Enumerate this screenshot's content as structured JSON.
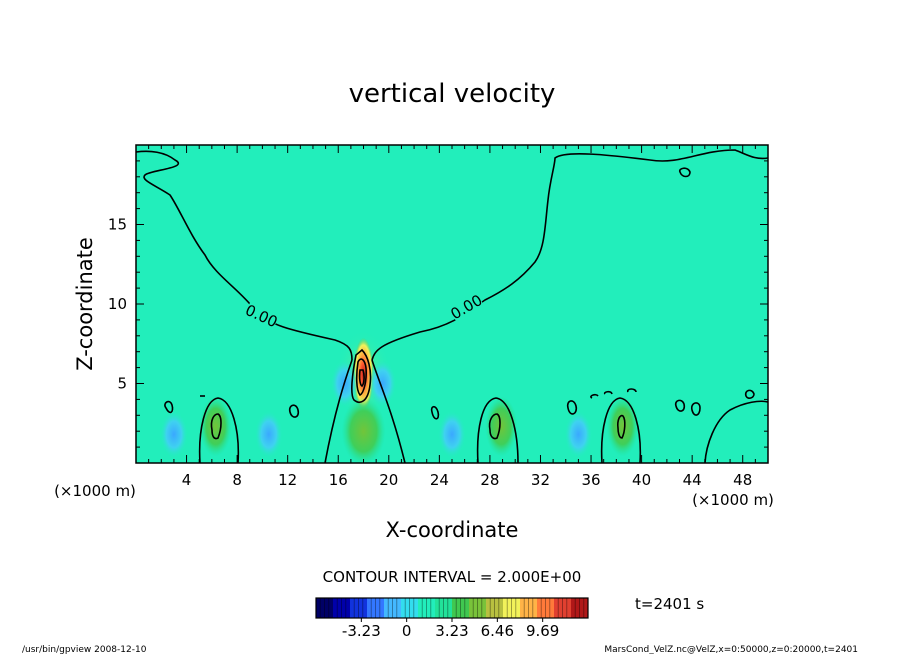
{
  "chart_data": {
    "type": "heatmap",
    "title": "vertical velocity",
    "xlabel": "X-coordinate",
    "ylabel": "Z-coordinate",
    "x_unit": "(×1000 m)",
    "x_unit_right": "(×1000 m)",
    "xlim": [
      0,
      50
    ],
    "ylim": [
      0,
      20
    ],
    "x_ticks": [
      4,
      8,
      12,
      16,
      20,
      24,
      28,
      32,
      36,
      40,
      44,
      48
    ],
    "y_ticks": [
      5,
      10,
      15
    ],
    "contour_interval_label": "CONTOUR INTERVAL = 2.000E+00",
    "contour_labels": [
      "0.00",
      "0.00"
    ],
    "colorbar": {
      "min": -6.46,
      "max": 12.92,
      "tick_values": [
        -3.23,
        0,
        3.23,
        6.46,
        9.69
      ],
      "tick_labels": [
        "-3.23",
        "0",
        "3.23",
        "6.46",
        "9.69"
      ],
      "colors": [
        "#000066",
        "#0000aa",
        "#1133dd",
        "#3377ff",
        "#44b8ff",
        "#33ddee",
        "#22eebb",
        "#22e29a",
        "#40c850",
        "#79c23a",
        "#b8c040",
        "#f2f25a",
        "#ffb347",
        "#ff7a3a",
        "#e04030",
        "#b01818"
      ]
    },
    "features": [
      {
        "kind": "updraft_core",
        "x": 18.0,
        "z_top": 7.5,
        "z_bottom": 3.7,
        "max": 12.0
      },
      {
        "kind": "updraft",
        "x": 6.3,
        "z": 2.3,
        "value": 2.5
      },
      {
        "kind": "updraft",
        "x": 28.9,
        "z": 2.3,
        "value": 2.5
      },
      {
        "kind": "updraft",
        "x": 38.5,
        "z": 2.3,
        "value": 2.0
      },
      {
        "kind": "downdraft",
        "x": 3.0,
        "z": 1.8,
        "value": -2.0
      },
      {
        "kind": "downdraft",
        "x": 10.5,
        "z": 1.8,
        "value": -2.0
      },
      {
        "kind": "downdraft",
        "x": 25.0,
        "z": 1.8,
        "value": -2.0
      },
      {
        "kind": "downdraft",
        "x": 35.0,
        "z": 1.8,
        "value": -2.0
      },
      {
        "kind": "downdraft",
        "x": 16.5,
        "z": 5.0,
        "value": -1.5
      },
      {
        "kind": "downdraft",
        "x": 19.5,
        "z": 5.0,
        "value": -1.5
      }
    ]
  },
  "time_label": "t=2401 s",
  "footer_left": "/usr/bin/gpview   2008-12-10",
  "footer_right": "MarsCond_VelZ.nc@VelZ,x=0:50000,z=0:20000,t=2401"
}
